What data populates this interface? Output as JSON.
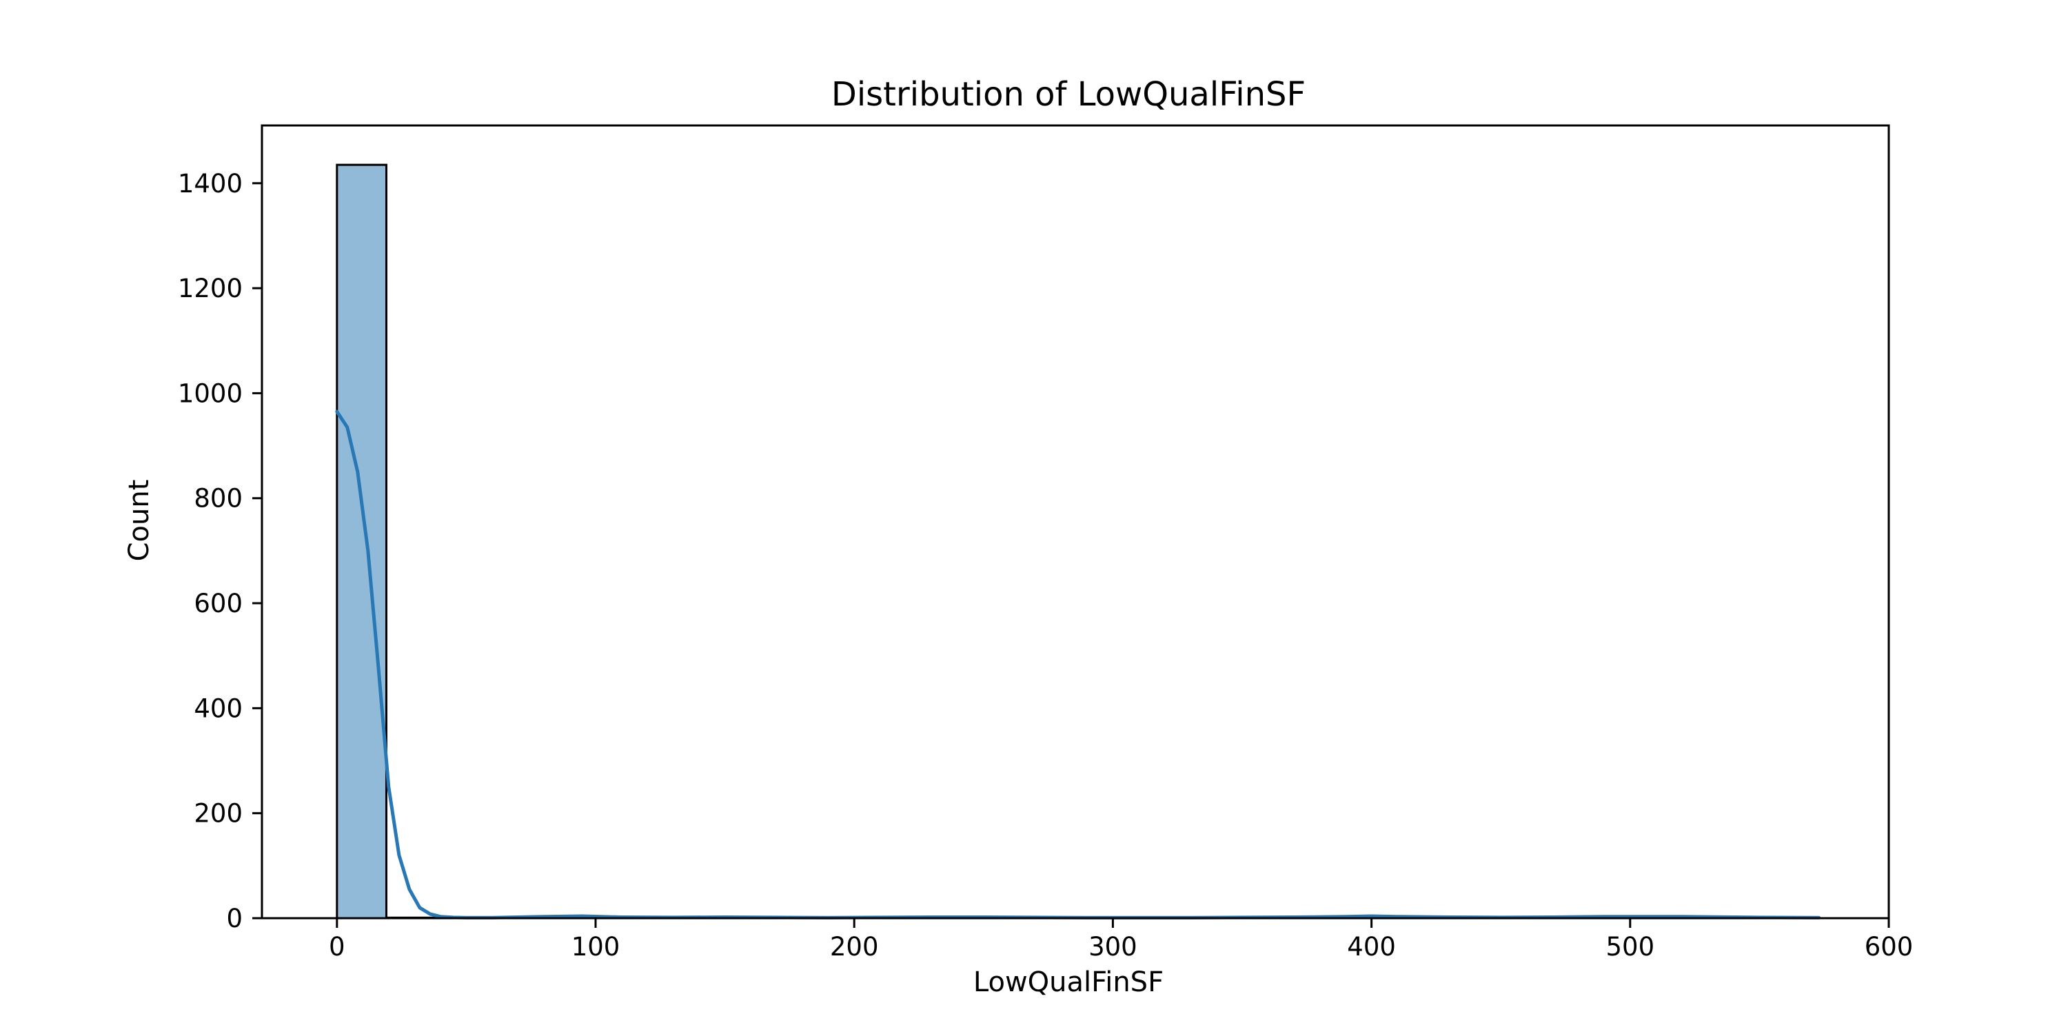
{
  "chart_data": {
    "type": "bar",
    "title": "Distribution of LowQualFinSF",
    "xlabel": "LowQualFinSF",
    "ylabel": "Count",
    "xlim": [
      -29,
      600
    ],
    "ylim": [
      0,
      1510
    ],
    "xticks": [
      0,
      100,
      200,
      300,
      400,
      500,
      600
    ],
    "yticks": [
      0,
      200,
      400,
      600,
      800,
      1000,
      1200,
      1400
    ],
    "bins": {
      "edges": [
        0,
        19.1,
        38.2,
        57.3,
        76.4,
        95.5,
        114.6,
        133.7,
        152.8,
        171.9,
        191.0,
        210.1,
        229.2,
        248.3,
        267.4,
        286.5,
        305.6,
        324.7,
        343.8,
        362.9,
        382.0,
        401.1,
        420.2,
        439.3,
        458.4,
        477.5,
        496.6,
        515.7,
        534.8,
        553.9,
        573.0
      ],
      "counts": [
        1435,
        1,
        1,
        2,
        2,
        2,
        1,
        0,
        2,
        1,
        0,
        1,
        1,
        1,
        0,
        0,
        0,
        1,
        0,
        1,
        3,
        1,
        0,
        1,
        0,
        1,
        2,
        0,
        0,
        1
      ]
    },
    "kde": {
      "x": [
        0,
        4,
        8,
        12,
        16,
        20,
        24,
        28,
        32,
        36,
        40,
        45,
        50,
        60,
        70,
        80,
        95,
        110,
        130,
        150,
        170,
        190,
        210,
        230,
        250,
        270,
        290,
        310,
        330,
        350,
        370,
        390,
        400,
        410,
        430,
        450,
        470,
        490,
        510,
        520,
        530,
        550,
        573
      ],
      "y": [
        965,
        935,
        850,
        700,
        480,
        250,
        120,
        55,
        20,
        8,
        3,
        1.5,
        1,
        1,
        2,
        3,
        4,
        2,
        1.5,
        2,
        1.5,
        1,
        1.5,
        2,
        2,
        1.5,
        1,
        1,
        1,
        1.5,
        2,
        3,
        4,
        3,
        2,
        1.5,
        2,
        3,
        3,
        3,
        2.5,
        1.5,
        1
      ]
    },
    "colors": {
      "bar_fill": "#91bad9",
      "bar_edge": "#000000",
      "kde_line": "#2778b4"
    },
    "grid": false,
    "legend": "none"
  }
}
